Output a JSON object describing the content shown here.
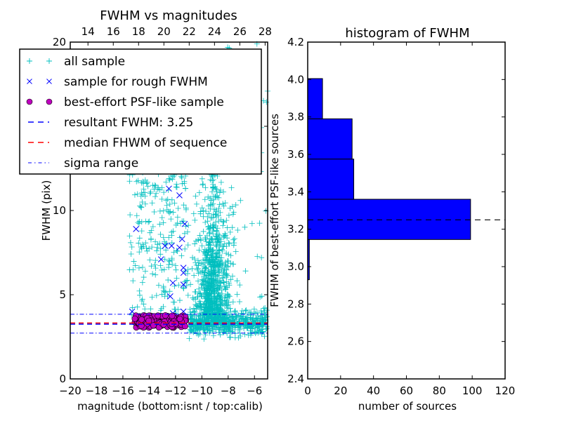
{
  "chart_data": [
    {
      "type": "scatter",
      "title": "FWHM vs magnitudes",
      "xlabel": "magnitude (bottom:isnt / top:calib)",
      "ylabel": "FWHM (pix)",
      "xlim": [
        -20,
        -5
      ],
      "ylim": [
        0,
        20
      ],
      "top_xlim": [
        12.6,
        28.2
      ],
      "x_ticks": [
        "−20",
        "−18",
        "−16",
        "−14",
        "−12",
        "−10",
        "−8",
        "−6"
      ],
      "x_tick_values": [
        -20,
        -18,
        -16,
        -14,
        -12,
        -10,
        -8,
        -6
      ],
      "y_ticks": [
        "0",
        "5",
        "10",
        "15",
        "20"
      ],
      "y_tick_values": [
        0,
        5,
        10,
        15,
        20
      ],
      "top_x_ticks": [
        "14",
        "16",
        "18",
        "20",
        "22",
        "24",
        "26",
        "28"
      ],
      "top_x_tick_values": [
        14,
        16,
        18,
        20,
        22,
        24,
        26,
        28
      ],
      "hlines": {
        "resultant_fwhm": 3.25,
        "median_fwhm": 3.32,
        "sigma_low": 2.72,
        "sigma_high": 3.84
      },
      "series": [
        {
          "name": "all sample",
          "marker": "+",
          "color": "#00bfbf",
          "description": "dense cluster near magnitude -9, FWHM 2-20; scattered points from -16 to -5"
        },
        {
          "name": "sample for rough FWHM",
          "marker": "x",
          "color": "#0000ff",
          "points": [
            [
              -15,
              8.9
            ],
            [
              -13.1,
              7.1
            ],
            [
              -12.8,
              7.9
            ],
            [
              -12.3,
              7.9
            ],
            [
              -11.7,
              7.8
            ],
            [
              -11.5,
              8.3
            ],
            [
              -11.3,
              9.2
            ],
            [
              -11.4,
              6.6
            ],
            [
              -11.4,
              6.3
            ],
            [
              -12.2,
              5.7
            ],
            [
              -11.4,
              5.6
            ],
            [
              -12.4,
              4.9
            ],
            [
              -15.3,
              4.0
            ],
            [
              -11.4,
              4.0
            ],
            [
              -12.2,
              3.9
            ],
            [
              -12.5,
              11.3
            ],
            [
              -11.7,
              10.9
            ]
          ]
        },
        {
          "name": "best-effort PSF-like sample",
          "marker": "o",
          "color": "#bf00bf",
          "description": "clustered at magnitude -15.2 to -11.2, FWHM 3.0-3.8"
        }
      ],
      "legend": [
        {
          "label": "all sample",
          "style": "plus",
          "color": "#00bfbf"
        },
        {
          "label": "sample for rough FWHM",
          "style": "cross",
          "color": "#0000ff"
        },
        {
          "label": "best-effort PSF-like sample",
          "style": "circle",
          "color": "#bf00bf"
        },
        {
          "label": "resultant FWHM: 3.25",
          "style": "dashed",
          "color": "#0000ff"
        },
        {
          "label": "median FHWM of sequence",
          "style": "dashed",
          "color": "#ff0000"
        },
        {
          "label": "sigma range",
          "style": "dashdot",
          "color": "#0000ff"
        }
      ],
      "legend_position": "top-left"
    },
    {
      "type": "bar",
      "orientation": "horizontal",
      "title": "histogram of FWHM",
      "xlabel": "number of sources",
      "ylabel": "FWHM of best-effort PSF-like sources",
      "xlim": [
        0,
        120
      ],
      "ylim": [
        2.4,
        4.2
      ],
      "x_ticks": [
        "0",
        "20",
        "40",
        "60",
        "80",
        "100",
        "120"
      ],
      "x_tick_values": [
        0,
        20,
        40,
        60,
        80,
        100,
        120
      ],
      "y_ticks": [
        "2.4",
        "2.6",
        "2.8",
        "3.0",
        "3.2",
        "3.4",
        "3.6",
        "3.8",
        "4.0",
        "4.2"
      ],
      "y_tick_values": [
        2.4,
        2.6,
        2.8,
        3.0,
        3.2,
        3.4,
        3.6,
        3.8,
        4.0,
        4.2
      ],
      "bins": [
        {
          "low": 2.93,
          "high": 3.145,
          "count": 1
        },
        {
          "low": 3.145,
          "high": 3.36,
          "count": 99
        },
        {
          "low": 3.36,
          "high": 3.575,
          "count": 28
        },
        {
          "low": 3.575,
          "high": 3.79,
          "count": 27
        },
        {
          "low": 3.79,
          "high": 4.005,
          "count": 9
        }
      ],
      "bar_color": "#0000ff",
      "hline": 3.25
    }
  ]
}
